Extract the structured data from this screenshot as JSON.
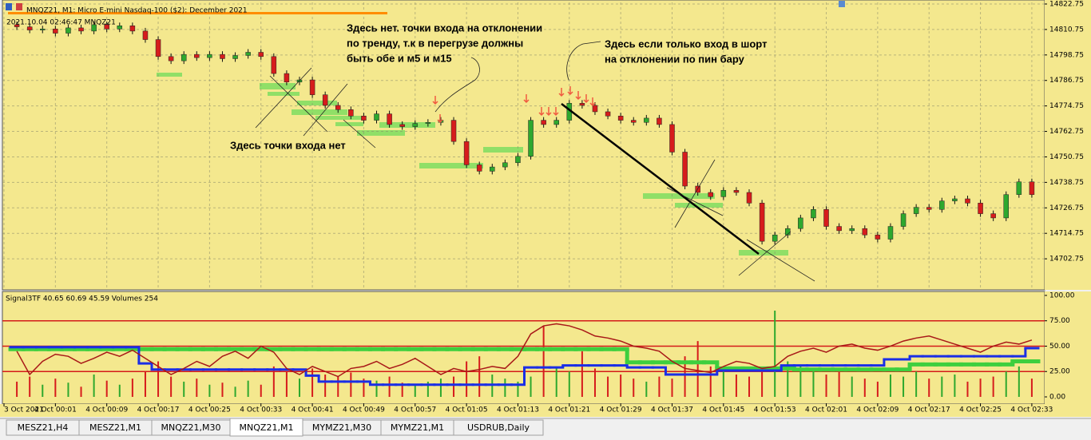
{
  "chart_data": [
    {
      "type": "candlestick",
      "title": "MNQZ21, M1:  Micro E-mini Nasdaq-100 ($2): December 2021",
      "subtitle": "2021.10.04 02:46:47 MNQZ21",
      "x": [
        -6,
        -4,
        -2,
        0,
        2,
        4,
        6,
        8,
        10,
        12,
        14,
        16,
        18,
        20,
        22,
        24,
        26,
        28,
        30,
        32,
        34,
        36,
        38,
        40,
        42,
        44,
        46,
        48,
        50,
        52,
        54,
        56,
        58,
        60,
        62,
        64,
        66,
        68,
        70,
        72,
        74,
        76,
        78,
        80,
        82,
        84,
        86,
        88,
        90,
        92,
        94,
        96,
        98,
        100,
        102,
        104,
        106,
        108,
        110,
        112,
        114,
        116,
        118,
        120,
        122,
        124,
        126,
        128,
        130,
        132,
        134,
        136,
        138,
        140,
        142,
        144,
        146,
        148,
        150,
        152
      ],
      "open": [
        14813,
        14812,
        14810.5,
        14811,
        14809,
        14811.5,
        14810,
        14813,
        14811,
        14812.5,
        14810,
        14806,
        14798,
        14796,
        14799,
        14797.5,
        14799,
        14797,
        14798.5,
        14800,
        14798,
        14790,
        14786,
        14787,
        14780,
        14775,
        14773,
        14770,
        14768,
        14771,
        14766,
        14765,
        14766.5,
        14767,
        14768,
        14758,
        14747,
        14744,
        14746,
        14748,
        14751,
        14768,
        14766,
        14768,
        14776,
        14775,
        14772,
        14770,
        14768,
        14767,
        14769,
        14766,
        14753,
        14737,
        14734,
        14732,
        14735,
        14734,
        14729,
        14711,
        14714,
        14717,
        14722,
        14726,
        14718,
        14716,
        14717,
        14714,
        14712,
        14718,
        14724,
        14727,
        14726,
        14730,
        14731,
        14729,
        14724,
        14722,
        14733,
        14739
      ],
      "high": [
        14814.5,
        14813.5,
        14812.5,
        14812.5,
        14813,
        14813,
        14814.5,
        14814.5,
        14814,
        14814,
        14811.5,
        14807.5,
        14799.5,
        14800.5,
        14800.5,
        14800.5,
        14800.5,
        14800,
        14801.5,
        14801.5,
        14799.5,
        14791.5,
        14788.5,
        14788.5,
        14781.5,
        14776.5,
        14774.5,
        14771.5,
        14772.5,
        14772.5,
        14767.5,
        14768,
        14768.5,
        14769.5,
        14769.5,
        14759.5,
        14748.5,
        14747.5,
        14749.5,
        14752.5,
        14769.5,
        14769.5,
        14769.5,
        14777.5,
        14777.5,
        14776.5,
        14773.5,
        14771.5,
        14769.5,
        14770.5,
        14770.5,
        14767.5,
        14754.5,
        14738.5,
        14735.5,
        14736.5,
        14736.5,
        14735.5,
        14730.5,
        14715.5,
        14718.5,
        14723.5,
        14727.5,
        14727.5,
        14719.5,
        14718.5,
        14718.5,
        14715.5,
        14719.5,
        14725.5,
        14728.5,
        14728.5,
        14731.5,
        14732.5,
        14732.5,
        14730.5,
        14725.5,
        14734.5,
        14740.5,
        14740.5
      ],
      "low": [
        14810.5,
        14809,
        14809,
        14807.5,
        14807.5,
        14808.5,
        14808.5,
        14809.5,
        14809.5,
        14808.5,
        14804.5,
        14796.5,
        14794.5,
        14794.5,
        14796,
        14796,
        14795.5,
        14795.5,
        14797,
        14796.5,
        14788.5,
        14784.5,
        14784.5,
        14778.5,
        14773.5,
        14771.5,
        14768.5,
        14766.5,
        14766.5,
        14764.5,
        14763.5,
        14763.5,
        14765,
        14765.5,
        14756.5,
        14745.5,
        14742.5,
        14742.5,
        14744.5,
        14746.5,
        14749.5,
        14764.5,
        14764.5,
        14766.5,
        14773.5,
        14770.5,
        14768.5,
        14766.5,
        14765.5,
        14765.5,
        14764.5,
        14751.5,
        14735.5,
        14732.5,
        14730.5,
        14730.5,
        14732.5,
        14727.5,
        14709.5,
        14709.5,
        14712.5,
        14715.5,
        14720.5,
        14716.5,
        14714.5,
        14714.5,
        14712.5,
        14710.5,
        14710.5,
        14716.5,
        14722.5,
        14724.5,
        14724.5,
        14728.5,
        14727.5,
        14722.5,
        14720.5,
        14720.5,
        14731.5,
        14731.5
      ],
      "close": [
        14812,
        14810.5,
        14811,
        14809,
        14811.5,
        14810,
        14813,
        14811,
        14812.5,
        14810,
        14806,
        14798,
        14796,
        14799,
        14797.5,
        14799,
        14797,
        14798.5,
        14800,
        14798,
        14790,
        14786,
        14787,
        14780,
        14775,
        14773,
        14770,
        14768,
        14771,
        14766,
        14765,
        14766.5,
        14767,
        14768,
        14758,
        14747,
        14744,
        14746,
        14748,
        14751,
        14768,
        14766,
        14768,
        14776,
        14775,
        14772,
        14770,
        14768,
        14767,
        14769,
        14766,
        14753,
        14737,
        14734,
        14732,
        14735,
        14734,
        14729,
        14711,
        14714,
        14717,
        14722,
        14726,
        14718,
        14716,
        14717,
        14714,
        14712,
        14718,
        14724,
        14727,
        14726,
        14730,
        14731,
        14729,
        14724,
        14722,
        14733,
        14739,
        14733
      ],
      "up_color": "#2ea82e",
      "down_color": "#d61c1c",
      "xlim": [
        -8.25,
        154
      ],
      "ylim": [
        14688.5,
        14823.5
      ],
      "yticks": [
        14822.75,
        14810.75,
        14798.75,
        14786.75,
        14774.75,
        14762.75,
        14750.75,
        14738.75,
        14726.75,
        14714.75,
        14702.75
      ],
      "grid": true,
      "annotations": [
        "Здесь нет. точки входа на отклонении",
        "по тренду, т.к в перегрузе должны",
        "быть обе и м5 и м15",
        "Здесь если только вход в шорт",
        "на отклонении по пин бару",
        "Здесь точки входа нет"
      ]
    },
    {
      "type": "indicator",
      "title": "Signal3TF 40.65 60.69 45.59 Volumes 254",
      "ylim": [
        -6.3,
        103.1
      ],
      "yticks": [
        {
          "value": 100,
          "label": "100.00"
        },
        {
          "value": 75,
          "label": "75.00"
        },
        {
          "value": 50,
          "label": "50.00"
        },
        {
          "value": 25,
          "label": "25.00"
        },
        {
          "value": 0,
          "label": "0.00"
        }
      ],
      "xticks": [
        {
          "value": -8,
          "label": "3 Oct 2021"
        },
        {
          "value": 0,
          "label": "4 Oct 00:01"
        },
        {
          "value": 8,
          "label": "4 Oct 00:09"
        },
        {
          "value": 16,
          "label": "4 Oct 00:17"
        },
        {
          "value": 24,
          "label": "4 Oct 00:25"
        },
        {
          "value": 32,
          "label": "4 Oct 00:33"
        },
        {
          "value": 40,
          "label": "4 Oct 00:41"
        },
        {
          "value": 48,
          "label": "4 Oct 00:49"
        },
        {
          "value": 56,
          "label": "4 Oct 00:57"
        },
        {
          "value": 64,
          "label": "4 Oct 01:05"
        },
        {
          "value": 72,
          "label": "4 Oct 01:13"
        },
        {
          "value": 80,
          "label": "4 Oct 01:21"
        },
        {
          "value": 88,
          "label": "4 Oct 01:29"
        },
        {
          "value": 96,
          "label": "4 Oct 01:37"
        },
        {
          "value": 104,
          "label": "4 Oct 01:45"
        },
        {
          "value": 112,
          "label": "4 Oct 01:53"
        },
        {
          "value": 120,
          "label": "4 Oct 02:01"
        },
        {
          "value": 128,
          "label": "4 Oct 02:09"
        },
        {
          "value": 136,
          "label": "4 Oct 02:17"
        },
        {
          "value": 144,
          "label": "4 Oct 02:25"
        },
        {
          "value": 152,
          "label": "4 Oct 02:33"
        }
      ],
      "levels": [
        75,
        50,
        25
      ],
      "level_color": "#d41a1a",
      "series": [
        {
          "kind": "bars",
          "values": [
            15,
            20,
            12,
            18,
            14,
            10,
            22,
            16,
            12,
            18,
            25,
            35,
            20,
            15,
            18,
            12,
            14,
            10,
            16,
            12,
            30,
            25,
            18,
            28,
            22,
            20,
            24,
            18,
            16,
            20,
            14,
            12,
            15,
            18,
            20,
            35,
            40,
            22,
            18,
            15,
            20,
            70,
            30,
            25,
            45,
            28,
            20,
            22,
            18,
            15,
            20,
            18,
            40,
            55,
            30,
            25,
            22,
            20,
            28,
            85,
            35,
            30,
            25,
            22,
            28,
            20,
            18,
            15,
            22,
            20,
            25,
            18,
            20,
            22,
            15,
            18,
            20,
            25,
            30,
            18
          ]
        },
        {
          "kind": "step",
          "color": "#3ecf3e",
          "width": 5,
          "values": [
            47,
            47,
            47,
            47,
            47,
            47,
            47,
            47,
            47,
            47,
            47,
            47,
            47,
            47,
            47,
            47,
            47,
            47,
            47,
            47,
            47,
            47,
            47,
            47,
            47,
            47,
            47,
            47,
            47,
            47,
            47,
            47,
            47,
            47,
            47,
            47,
            47,
            47,
            47,
            47,
            47,
            47,
            47,
            47,
            47,
            47,
            47,
            47,
            34,
            34,
            34,
            34,
            34,
            34,
            34,
            28,
            28,
            28,
            28,
            28,
            28,
            27,
            27,
            27,
            27,
            27,
            27,
            27,
            27,
            27,
            32,
            32,
            32,
            32,
            32,
            32,
            32,
            32,
            35,
            35
          ]
        },
        {
          "kind": "step",
          "color": "#1a2ee6",
          "width": 3,
          "values": [
            49,
            49,
            49,
            49,
            49,
            49,
            49,
            49,
            49,
            49,
            33,
            27,
            27,
            27,
            27,
            27,
            27,
            27,
            27,
            27,
            27,
            27,
            27,
            21,
            15,
            15,
            15,
            15,
            12,
            12,
            12,
            12,
            12,
            12,
            12,
            12,
            12,
            12,
            12,
            12,
            29,
            29,
            29,
            31,
            31,
            31,
            31,
            31,
            29,
            29,
            29,
            22,
            22,
            22,
            22,
            26,
            26,
            26,
            26,
            26,
            31,
            31,
            31,
            31,
            31,
            31,
            31,
            31,
            37,
            37,
            40,
            40,
            40,
            40,
            40,
            40,
            40,
            40,
            40,
            48
          ]
        },
        {
          "kind": "line",
          "color": "#a81818",
          "width": 1.5,
          "values": [
            45,
            22,
            35,
            42,
            40,
            33,
            38,
            44,
            40,
            46,
            38,
            30,
            22,
            28,
            35,
            30,
            40,
            45,
            38,
            50,
            44,
            28,
            22,
            30,
            25,
            20,
            28,
            30,
            35,
            28,
            32,
            38,
            30,
            22,
            28,
            25,
            27,
            30,
            28,
            40,
            62,
            70,
            72,
            70,
            66,
            60,
            58,
            55,
            50,
            48,
            45,
            35,
            28,
            26,
            24,
            30,
            35,
            33,
            28,
            30,
            40,
            45,
            48,
            44,
            50,
            52,
            48,
            46,
            50,
            55,
            58,
            60,
            56,
            52,
            48,
            44,
            50,
            54,
            52,
            56
          ]
        }
      ]
    }
  ],
  "tabs": {
    "items": [
      "MESZ21,H4",
      "MESZ21,M1",
      "MNQZ21,M30",
      "MNQZ21,M1",
      "MYMZ21,M30",
      "MYMZ21,M1",
      "USDRUB,Daily"
    ],
    "active": 3
  }
}
